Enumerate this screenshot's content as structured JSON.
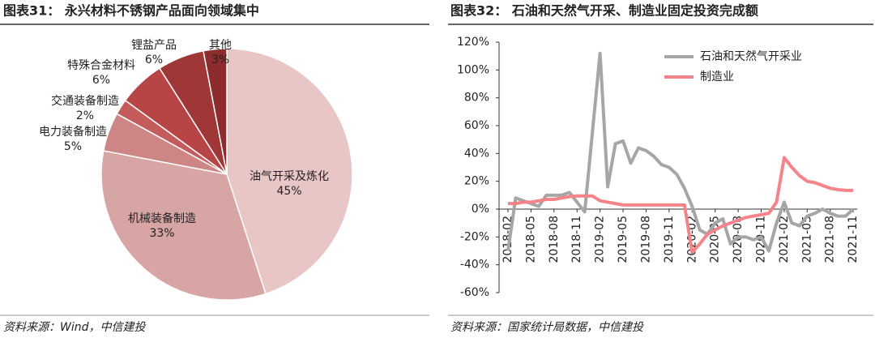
{
  "chart_data": [
    {
      "type": "pie",
      "title": "图表31： 永兴材料不锈钢产品面向领域集中",
      "categories": [
        "油气开采及炼化",
        "机械装备制造",
        "电力装备制造",
        "交通装备制造",
        "特殊合金材料",
        "锂盐产品",
        "其他"
      ],
      "values": [
        45,
        33,
        5,
        2,
        6,
        6,
        3
      ],
      "value_labels": [
        "45%",
        "33%",
        "5%",
        "2%",
        "6%",
        "6%",
        "3%"
      ],
      "colors": [
        "#e8c6c6",
        "#d8a5a5",
        "#cd8585",
        "#c45c5c",
        "#b84545",
        "#a03737",
        "#8c2c2c"
      ],
      "source": "资料来源：Wind，中信建投"
    },
    {
      "type": "line",
      "title": "图表32： 石油和天然气开采、制造业固定投资完成额",
      "categories": [
        "2018-02",
        null,
        null,
        "2018-05",
        null,
        null,
        "2018-08",
        null,
        null,
        "2018-11",
        null,
        null,
        "2019-02",
        null,
        null,
        "2019-05",
        null,
        null,
        "2019-08",
        null,
        null,
        "2019-11",
        null,
        null,
        "2020-02",
        null,
        null,
        "2020-05",
        null,
        null,
        "2020-08",
        null,
        null,
        "2020-11",
        null,
        null,
        "2021-02",
        null,
        null,
        "2021-05",
        null,
        null,
        "2021-08",
        null,
        null,
        "2021-11"
      ],
      "series": [
        {
          "name": "石油和天然气开采业",
          "color": "#a6a6a6",
          "values": [
            -30,
            8,
            6,
            4,
            2,
            10,
            10,
            10,
            12,
            5,
            -2,
            55,
            112,
            16,
            47,
            49,
            33,
            44,
            42,
            38,
            32,
            30,
            25,
            15,
            2,
            -15,
            -18,
            -10,
            -7,
            -25,
            -20,
            -20,
            -22,
            -20,
            -30,
            -10,
            5,
            -10,
            -12,
            -5,
            -3,
            0,
            -3,
            -5,
            -5,
            0
          ]
        },
        {
          "name": "制造业",
          "color": "#f4838a",
          "values": [
            4,
            4,
            5,
            5,
            6,
            7,
            7,
            8,
            9,
            9.5,
            9.5,
            9.5,
            6,
            5,
            4,
            3,
            3,
            3,
            3,
            3,
            3,
            3,
            3,
            3,
            -31,
            -25,
            -18,
            -15,
            -12,
            -10,
            -8,
            -6,
            -5,
            -4,
            -3,
            5,
            37,
            30,
            24,
            20,
            19,
            17,
            15,
            14,
            13.5,
            13.5
          ]
        }
      ],
      "ylim": [
        -60,
        120
      ],
      "yticks": [
        {
          "value": -60,
          "label": "-60%"
        },
        {
          "value": -40,
          "label": "-40%"
        },
        {
          "value": -20,
          "label": "-20%"
        },
        {
          "value": 0,
          "label": "0%"
        },
        {
          "value": 20,
          "label": "20%"
        },
        {
          "value": 40,
          "label": "40%"
        },
        {
          "value": 60,
          "label": "60%"
        },
        {
          "value": 80,
          "label": "80%"
        },
        {
          "value": 100,
          "label": "100%"
        },
        {
          "value": 120,
          "label": "120%"
        }
      ],
      "source": "资料来源：国家统计局数据，中信建投"
    }
  ]
}
